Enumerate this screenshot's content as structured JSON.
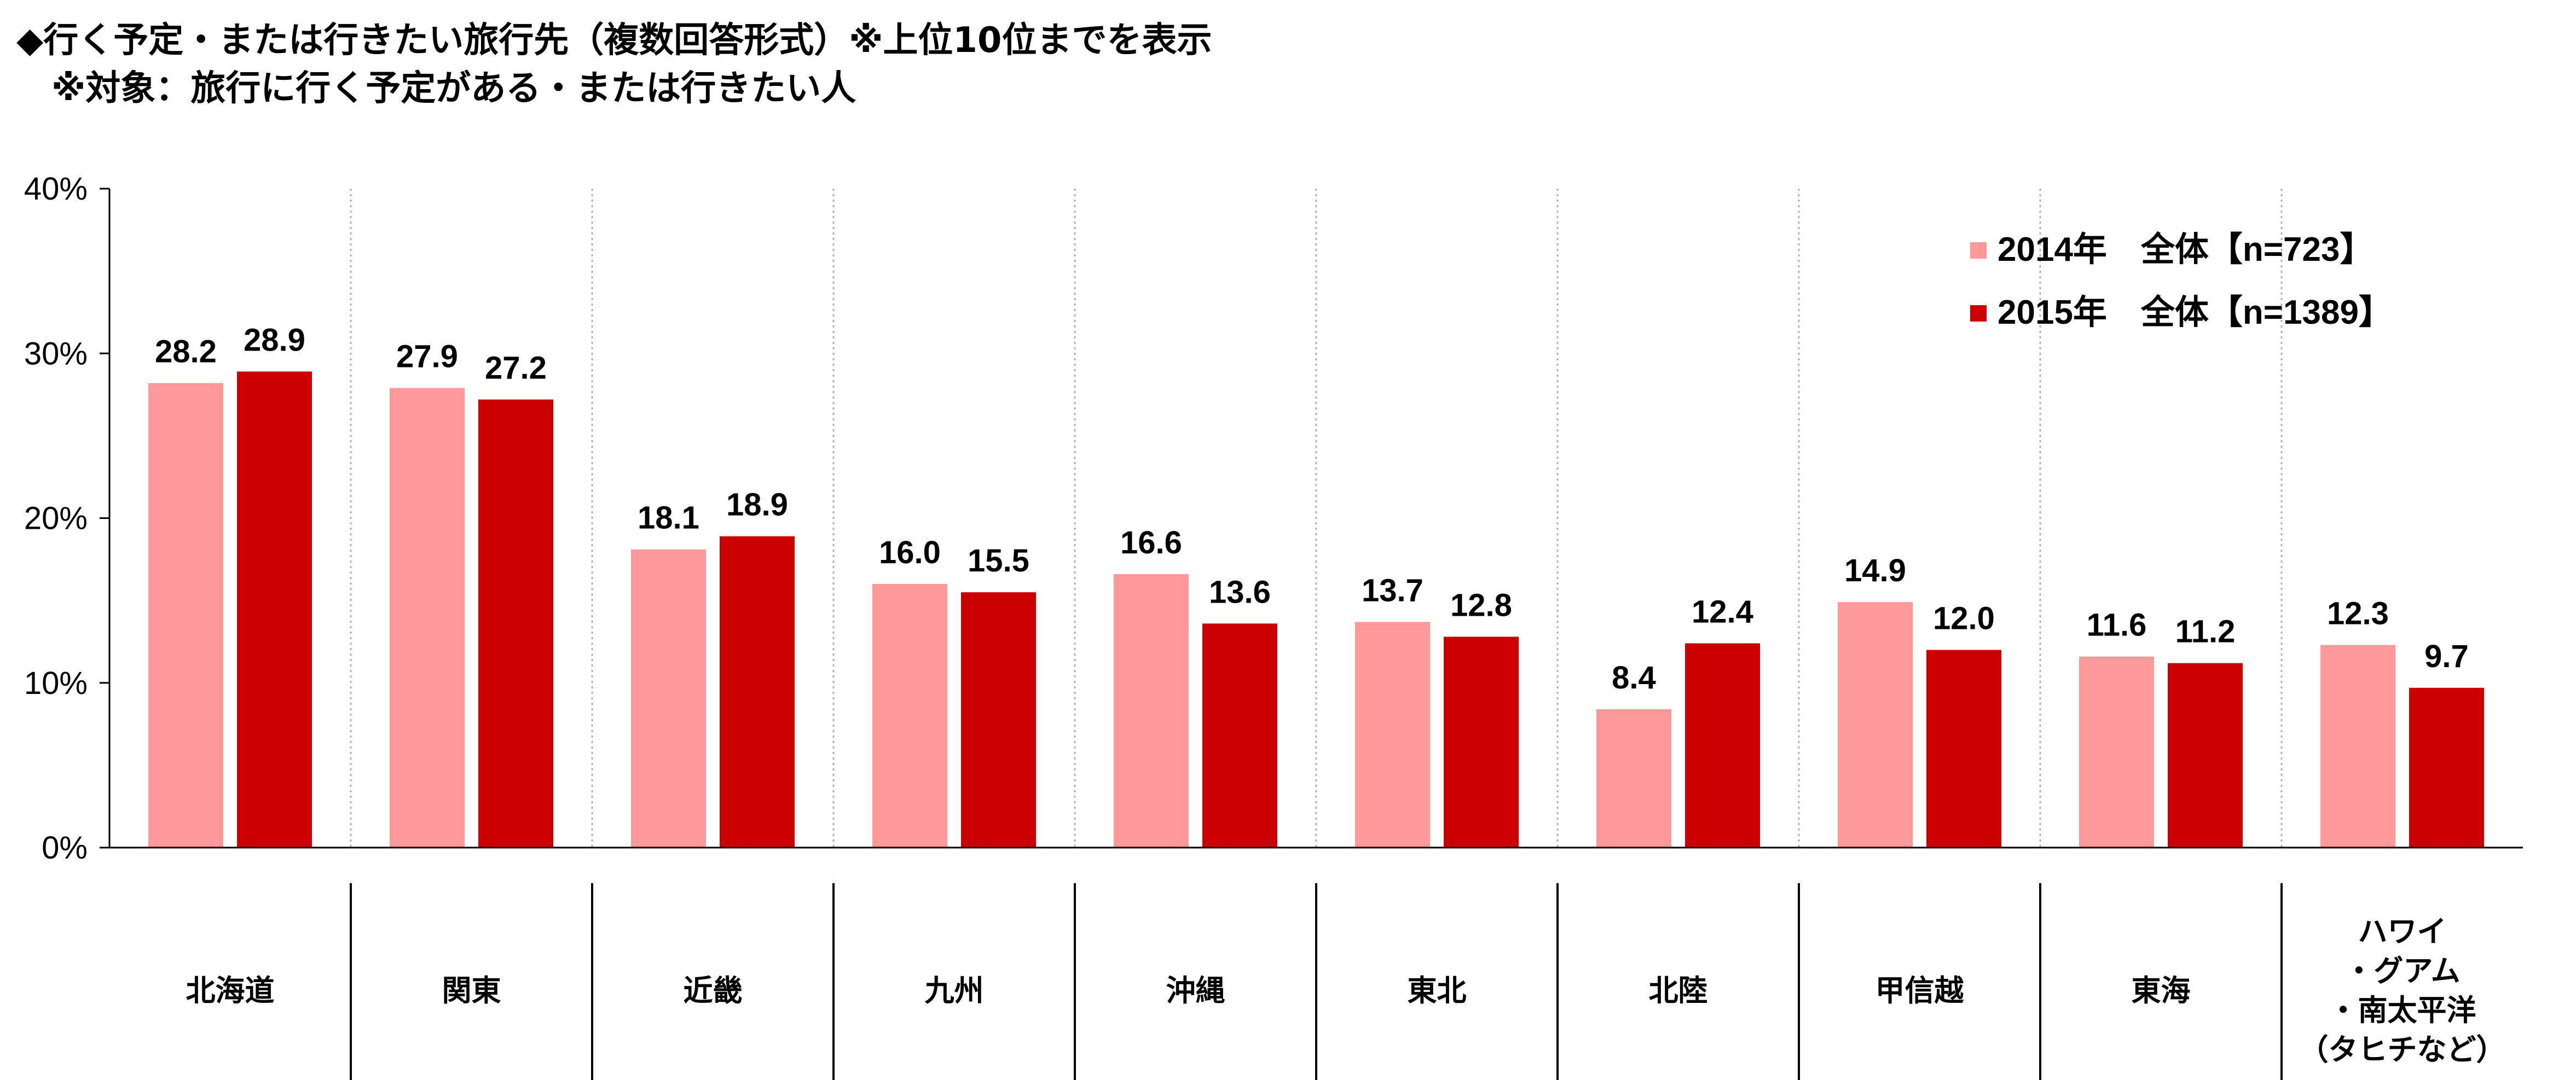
{
  "chart_data": {
    "type": "bar",
    "title_lines": [
      "◆行く予定・または行きたい旅行先（複数回答形式）※上位10位までを表示",
      "　※対象：旅行に行く予定がある・または行きたい人"
    ],
    "categories": [
      [
        "北海道"
      ],
      [
        "関東"
      ],
      [
        "近畿"
      ],
      [
        "九州"
      ],
      [
        "沖縄"
      ],
      [
        "東北"
      ],
      [
        "北陸"
      ],
      [
        "甲信越"
      ],
      [
        "東海"
      ],
      [
        "ハワイ",
        "・グアム",
        "・南太平洋",
        "（タヒチなど）"
      ]
    ],
    "series": [
      {
        "name": "2014年　全体【n=723】",
        "color": "#FF9999",
        "values": [
          28.2,
          27.9,
          18.1,
          16.0,
          16.6,
          13.7,
          8.4,
          14.9,
          11.6,
          12.3
        ]
      },
      {
        "name": "2015年　全体【n=1389】",
        "color": "#CC0000",
        "values": [
          28.9,
          27.2,
          18.9,
          15.5,
          13.6,
          12.8,
          12.4,
          12.0,
          11.2,
          9.7
        ]
      }
    ],
    "ylim": [
      0,
      40
    ],
    "yticks": [
      0,
      10,
      20,
      30,
      40
    ],
    "ytick_labels": [
      "0%",
      "10%",
      "20%",
      "30%",
      "40%"
    ],
    "data_label_decimals": 1,
    "legend_position": "top-right",
    "grid": "vertical dotted separators between categories"
  }
}
